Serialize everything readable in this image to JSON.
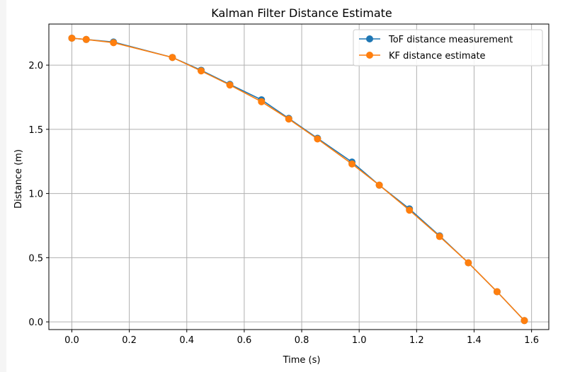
{
  "chart_data": {
    "type": "line",
    "title": "Kalman Filter Distance Estimate",
    "xlabel": "Time (s)",
    "ylabel": "Distance (m)",
    "xlim": [
      -0.08,
      1.66
    ],
    "ylim": [
      -0.06,
      2.32
    ],
    "grid": true,
    "legend_position": "top-right",
    "x_ticks": [
      0.0,
      0.2,
      0.4,
      0.6,
      0.8,
      1.0,
      1.2,
      1.4,
      1.6
    ],
    "x_tick_labels": [
      "0.0",
      "0.2",
      "0.4",
      "0.6",
      "0.8",
      "1.0",
      "1.2",
      "1.4",
      "1.6"
    ],
    "y_ticks": [
      0.0,
      0.5,
      1.0,
      1.5,
      2.0
    ],
    "y_tick_labels": [
      "0.0",
      "0.5",
      "1.0",
      "1.5",
      "2.0"
    ],
    "series": [
      {
        "name": "ToF distance measurement",
        "color": "#1f77b4",
        "x": [
          0.0,
          0.05,
          0.145,
          0.35,
          0.45,
          0.55,
          0.66,
          0.755,
          0.855,
          0.975,
          1.07,
          1.175,
          1.28,
          1.38,
          1.48,
          1.575
        ],
        "y": [
          2.21,
          2.2,
          2.18,
          2.06,
          1.96,
          1.85,
          1.73,
          1.585,
          1.43,
          1.245,
          1.065,
          0.88,
          0.67,
          0.46,
          0.235,
          0.01
        ]
      },
      {
        "name": "KF distance estimate",
        "color": "#ff7f0e",
        "x": [
          0.0,
          0.05,
          0.145,
          0.35,
          0.45,
          0.55,
          0.66,
          0.755,
          0.855,
          0.975,
          1.07,
          1.175,
          1.28,
          1.38,
          1.48,
          1.575
        ],
        "y": [
          2.21,
          2.2,
          2.175,
          2.06,
          1.955,
          1.845,
          1.715,
          1.58,
          1.425,
          1.23,
          1.065,
          0.87,
          0.665,
          0.46,
          0.235,
          0.01
        ]
      }
    ]
  }
}
